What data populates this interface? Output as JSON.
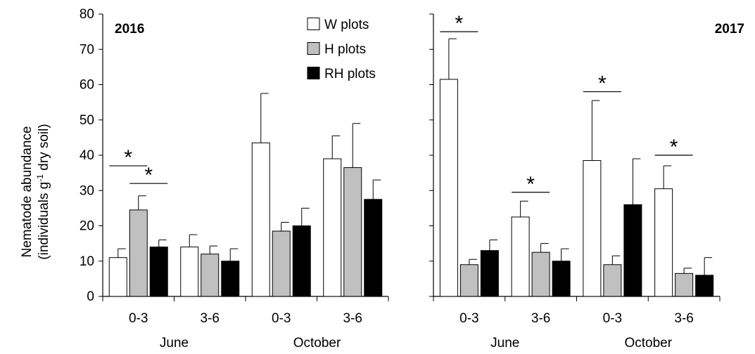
{
  "chart_data": {
    "type": "bar",
    "ylabel_line1": "Nematode abundance",
    "ylabel_line2_pre": "(individuals g",
    "ylabel_line2_sup": "-1",
    "ylabel_line2_post": " dry soil)",
    "ylim": [
      0,
      80
    ],
    "yticks": [
      0,
      10,
      20,
      30,
      40,
      50,
      60,
      70,
      80
    ],
    "legend": {
      "placement": "top-inside-left-panel",
      "entries": [
        {
          "name": "W plots",
          "color": "#ffffff"
        },
        {
          "name": "H plots",
          "color": "#c0c0c0"
        },
        {
          "name": "RH plots",
          "color": "#000000"
        }
      ]
    },
    "panels": [
      {
        "title": "2016",
        "categories": [
          "0-3",
          "3-6",
          "0-3",
          "3-6"
        ],
        "groups": [
          {
            "label": "June",
            "span": [
              0,
              1
            ]
          },
          {
            "label": "October",
            "span": [
              2,
              3
            ]
          }
        ],
        "series": [
          {
            "name": "W plots",
            "values": [
              11,
              14,
              43.5,
              39
            ],
            "errors": [
              2.5,
              3.5,
              14,
              6.5
            ]
          },
          {
            "name": "H plots",
            "values": [
              24.5,
              12,
              18.5,
              36.5
            ],
            "errors": [
              4,
              2.3,
              2.5,
              12.5
            ]
          },
          {
            "name": "RH plots",
            "values": [
              14,
              10,
              20,
              27.5
            ],
            "errors": [
              2,
              3.5,
              5,
              5.5
            ]
          }
        ],
        "significance": [
          {
            "category": 0,
            "from": 0,
            "to": 1,
            "y": 37,
            "label": "*"
          },
          {
            "category": 0,
            "from": 1,
            "to": 2,
            "y": 32,
            "label": "*"
          }
        ]
      },
      {
        "title": "2017",
        "categories": [
          "0-3",
          "3-6",
          "0-3",
          "3-6"
        ],
        "groups": [
          {
            "label": "June",
            "span": [
              0,
              1
            ]
          },
          {
            "label": "October",
            "span": [
              2,
              3
            ]
          }
        ],
        "series": [
          {
            "name": "W plots",
            "values": [
              61.5,
              22.5,
              38.5,
              30.5
            ],
            "errors": [
              11.5,
              4.5,
              17,
              6.5
            ]
          },
          {
            "name": "H plots",
            "values": [
              9,
              12.5,
              9,
              6.5
            ],
            "errors": [
              1.5,
              2.5,
              2.5,
              1.5
            ]
          },
          {
            "name": "RH plots",
            "values": [
              13,
              10,
              26,
              6
            ],
            "errors": [
              3,
              3.5,
              13,
              5
            ]
          }
        ],
        "significance": [
          {
            "category": 0,
            "from": 0,
            "to": 1,
            "y": 75,
            "label": "*"
          },
          {
            "category": 1,
            "from": 0,
            "to": 1,
            "y": 29.5,
            "label": "*"
          },
          {
            "category": 2,
            "from": 0,
            "to": 1,
            "y": 58,
            "label": "*"
          },
          {
            "category": 3,
            "from": 0,
            "to": 1,
            "y": 40,
            "label": "*"
          }
        ]
      }
    ]
  }
}
